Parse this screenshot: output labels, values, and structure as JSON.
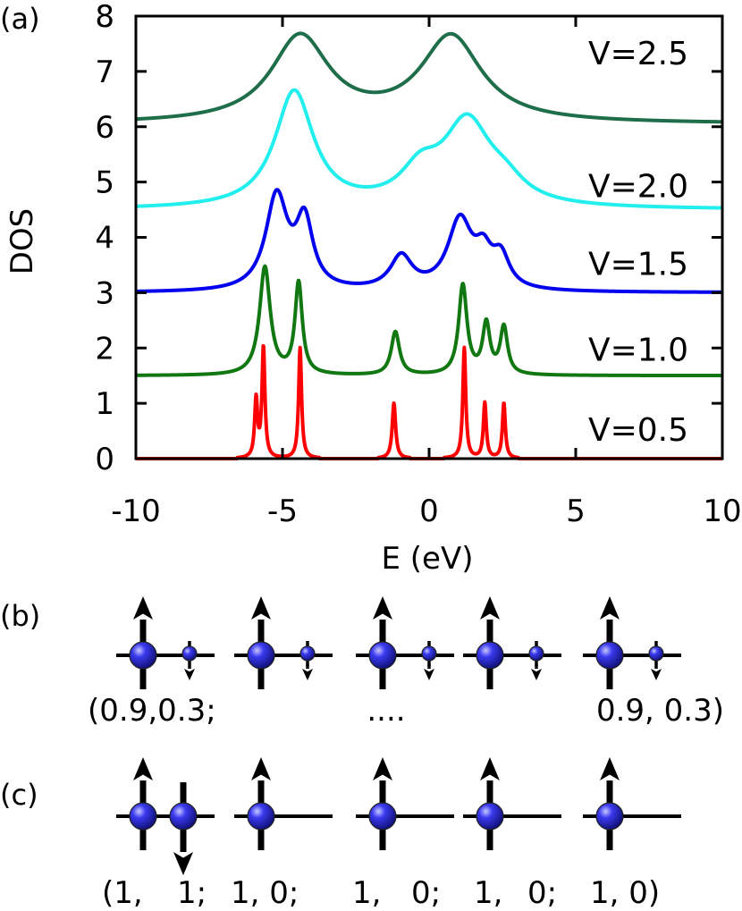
{
  "chart_data": {
    "type": "line",
    "panel_label": "(a)",
    "xlabel": "E (eV)",
    "ylabel": "DOS",
    "xlim": [
      -10,
      10
    ],
    "ylim": [
      0,
      8
    ],
    "xticks": [
      -10,
      -5,
      0,
      5,
      10
    ],
    "yticks": [
      0,
      1,
      2,
      3,
      4,
      5,
      6,
      7,
      8
    ],
    "gamma_eV": 0.6,
    "series": [
      {
        "name": "V=0.5",
        "color": "#ff0000",
        "offset": 0.0,
        "peaks": [
          {
            "e": -5.9,
            "h": 1.05,
            "w": 0.06
          },
          {
            "e": -5.65,
            "h": 2.0,
            "w": 0.06
          },
          {
            "e": -4.4,
            "h": 2.0,
            "w": 0.06
          },
          {
            "e": -1.2,
            "h": 1.0,
            "w": 0.07
          },
          {
            "e": 1.2,
            "h": 2.0,
            "w": 0.06
          },
          {
            "e": 1.9,
            "h": 1.0,
            "w": 0.06
          },
          {
            "e": 2.55,
            "h": 1.0,
            "w": 0.06
          }
        ]
      },
      {
        "name": "V=1.0",
        "color": "#117711",
        "offset": 1.5,
        "peaks": [
          {
            "e": -5.6,
            "h": 1.95,
            "w": 0.22
          },
          {
            "e": -4.45,
            "h": 1.65,
            "w": 0.15
          },
          {
            "e": -1.15,
            "h": 0.78,
            "w": 0.17
          },
          {
            "e": 1.15,
            "h": 1.62,
            "w": 0.17
          },
          {
            "e": 1.95,
            "h": 0.9,
            "w": 0.15
          },
          {
            "e": 2.55,
            "h": 0.85,
            "w": 0.15
          }
        ]
      },
      {
        "name": "V=1.5",
        "color": "#0000ee",
        "offset": 3.0,
        "peaks": [
          {
            "e": -5.2,
            "h": 1.7,
            "w": 0.45
          },
          {
            "e": -4.25,
            "h": 1.2,
            "w": 0.35
          },
          {
            "e": -0.95,
            "h": 0.6,
            "w": 0.45
          },
          {
            "e": 1.05,
            "h": 1.25,
            "w": 0.5
          },
          {
            "e": 1.85,
            "h": 0.55,
            "w": 0.35
          },
          {
            "e": 2.45,
            "h": 0.55,
            "w": 0.35
          }
        ]
      },
      {
        "name": "V=2.0",
        "color": "#22eeee",
        "offset": 4.5,
        "peaks": [
          {
            "e": -4.6,
            "h": 2.1,
            "w": 0.8
          },
          {
            "e": -0.3,
            "h": 0.55,
            "w": 0.8
          },
          {
            "e": 1.3,
            "h": 1.5,
            "w": 1.0
          },
          {
            "e": 2.6,
            "h": 0.3,
            "w": 0.8
          }
        ]
      },
      {
        "name": "V=2.5",
        "color": "#1e6e4a",
        "offset": 6.05,
        "peaks": [
          {
            "e": -4.4,
            "h": 1.55,
            "w": 1.2
          },
          {
            "e": 0.75,
            "h": 1.55,
            "w": 1.25
          }
        ]
      }
    ]
  },
  "panel_b": {
    "label": "(b)",
    "text_left": "(0.9,0.3;",
    "text_mid": "....",
    "text_right": "0.9, 0.3)",
    "atom_color": "#2a2ae8"
  },
  "panel_c": {
    "label": "(c)",
    "text_items": [
      "(1,",
      "1;",
      "1, 0;",
      "1,",
      "0;",
      "1,",
      "0;",
      "1, 0)"
    ],
    "atom_color": "#2a2ae8"
  }
}
